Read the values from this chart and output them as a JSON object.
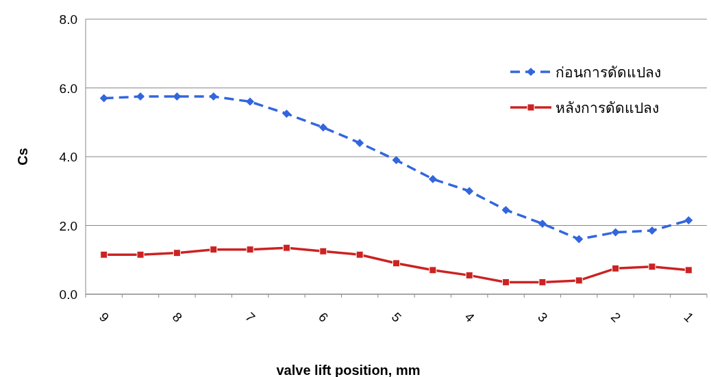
{
  "chart_data": {
    "type": "line",
    "xlabel": "valve lift position, mm",
    "ylabel": "Cs",
    "categories": [
      "9",
      null,
      "8",
      null,
      "7",
      null,
      "6",
      null,
      "5",
      null,
      "4",
      null,
      "3",
      null,
      "2",
      null,
      "1"
    ],
    "series": [
      {
        "name": "ก่อนการดัดแปลง",
        "color": "#3366dd",
        "marker": "diamond",
        "line_style": "dashed",
        "values": [
          5.7,
          5.75,
          5.75,
          5.75,
          5.6,
          5.25,
          4.85,
          4.4,
          3.9,
          3.35,
          3.0,
          2.45,
          2.05,
          1.6,
          1.8,
          1.85,
          2.15
        ]
      },
      {
        "name": "หลังการดัดแปลง",
        "color": "#cc2222",
        "marker": "square",
        "line_style": "solid",
        "values": [
          1.15,
          1.15,
          1.2,
          1.3,
          1.3,
          1.35,
          1.25,
          1.15,
          0.9,
          0.7,
          0.55,
          0.35,
          0.35,
          0.4,
          0.75,
          0.8,
          0.7
        ]
      }
    ],
    "ylim": [
      0,
      8
    ],
    "yticks": [
      {
        "value": 0,
        "label": "0.0"
      },
      {
        "value": 2,
        "label": "2.0"
      },
      {
        "value": 4,
        "label": "4.0"
      },
      {
        "value": 6,
        "label": "6.0"
      },
      {
        "value": 8,
        "label": "8.0"
      }
    ],
    "grid": "y",
    "legend": "top right"
  }
}
